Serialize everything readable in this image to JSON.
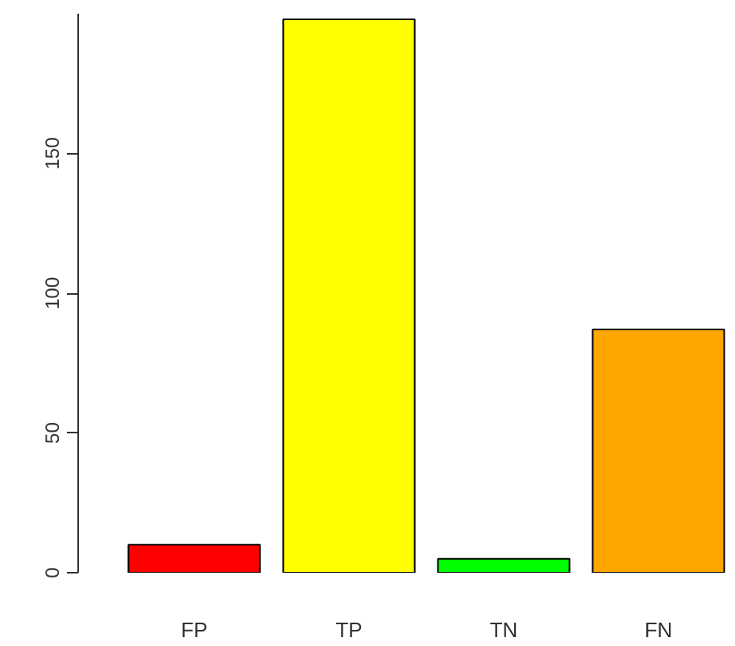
{
  "chart_data": {
    "type": "bar",
    "categories": [
      "FP",
      "TP",
      "TN",
      "FN"
    ],
    "values": [
      10,
      198,
      5,
      87
    ],
    "colors": [
      "#ff0000",
      "#ffff00",
      "#00ff00",
      "#ffa500"
    ],
    "ylim": [
      0,
      200
    ],
    "yticks": [
      0,
      50,
      100,
      150
    ],
    "grid": false
  }
}
